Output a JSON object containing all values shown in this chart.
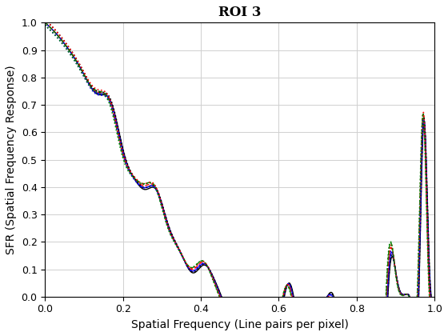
{
  "title": "ROI 3",
  "xlabel": "Spatial Frequency (Line pairs per pixel)",
  "ylabel": "SFR (Spatial Frequency Response)",
  "xlim": [
    0,
    1.0
  ],
  "ylim": [
    0,
    1.0
  ],
  "yticks": [
    0.0,
    0.1,
    0.2,
    0.3,
    0.4,
    0.5,
    0.6,
    0.7,
    0.8,
    0.9,
    1.0
  ],
  "xticks": [
    0.0,
    0.2,
    0.4,
    0.6,
    0.8,
    1.0
  ],
  "grid": true,
  "background_color": "#ffffff",
  "lines": [
    {
      "color": "#000000",
      "linestyle": "-",
      "linewidth": 1.0
    },
    {
      "color": "#0000ff",
      "linestyle": "-",
      "linewidth": 1.0
    },
    {
      "color": "#ff0000",
      "linestyle": "--",
      "linewidth": 1.0
    },
    {
      "color": "#008000",
      "linestyle": "--",
      "linewidth": 1.0
    },
    {
      "color": "#000000",
      "linestyle": ":",
      "linewidth": 1.2
    },
    {
      "color": "#0000ff",
      "linestyle": ":",
      "linewidth": 1.2
    },
    {
      "color": "#ff0000",
      "linestyle": ":",
      "linewidth": 1.2
    },
    {
      "color": "#008000",
      "linestyle": ":",
      "linewidth": 1.2
    }
  ],
  "title_fontsize": 12,
  "label_fontsize": 10,
  "tick_fontsize": 9
}
